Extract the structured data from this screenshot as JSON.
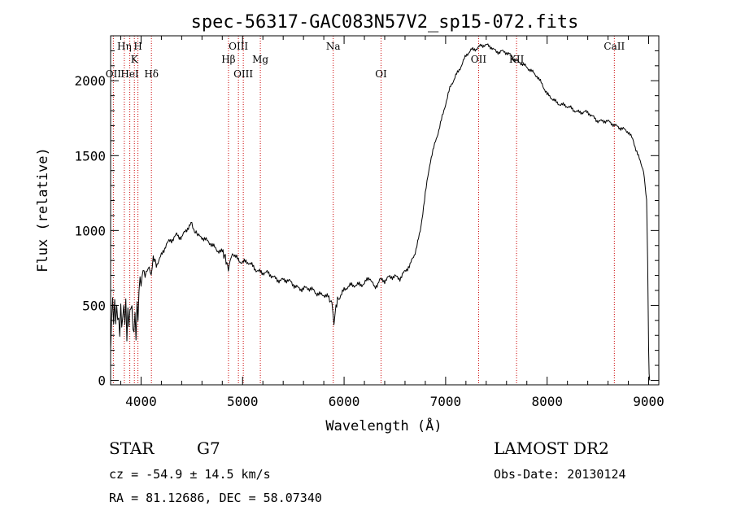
{
  "chart_data": {
    "type": "line",
    "title": "spec-56317-GAC083N57V2_sp15-072.fits",
    "xlabel": "Wavelength (Å)",
    "ylabel": "Flux (relative)",
    "xlim": [
      3700,
      9100
    ],
    "ylim": [
      -30,
      2300
    ],
    "xticks": [
      4000,
      5000,
      6000,
      7000,
      8000,
      9000
    ],
    "yticks": [
      0,
      500,
      1000,
      1500,
      2000
    ],
    "grid": false,
    "line_color": "#000000",
    "marker_color": "#cc0000",
    "series": [
      {
        "x": [
          3700,
          3710,
          3720,
          3730,
          3740,
          3750,
          3760,
          3770,
          3780,
          3790,
          3800,
          3810,
          3820,
          3830,
          3840,
          3850,
          3860,
          3870,
          3880,
          3890,
          3900,
          3910,
          3920,
          3930,
          3940,
          3950,
          3960,
          3970,
          3980,
          3990,
          4000,
          4020,
          4040,
          4060,
          4080,
          4100,
          4120,
          4150,
          4200,
          4250,
          4300,
          4350,
          4400,
          4450,
          4500,
          4520,
          4550,
          4600,
          4650,
          4700,
          4750,
          4800,
          4830,
          4860,
          4880,
          4900,
          4950,
          5000,
          5050,
          5100,
          5150,
          5200,
          5300,
          5400,
          5500,
          5600,
          5700,
          5800,
          5850,
          5880,
          5900,
          5920,
          5950,
          6000,
          6050,
          6100,
          6150,
          6200,
          6250,
          6300,
          6350,
          6400,
          6450,
          6500,
          6550,
          6600,
          6650,
          6700,
          6750,
          6800,
          6850,
          6900,
          6950,
          7000,
          7050,
          7100,
          7150,
          7200,
          7250,
          7300,
          7350,
          7400,
          7450,
          7500,
          7550,
          7600,
          7650,
          7700,
          7750,
          7800,
          7850,
          7900,
          7950,
          8000,
          8100,
          8200,
          8300,
          8400,
          8500,
          8600,
          8700,
          8800,
          8850,
          8900,
          8950,
          8980,
          8990,
          9000,
          9005,
          9010
        ],
        "y": [
          200,
          450,
          550,
          400,
          500,
          350,
          450,
          380,
          420,
          300,
          550,
          350,
          450,
          480,
          400,
          550,
          300,
          500,
          350,
          450,
          420,
          480,
          300,
          350,
          450,
          300,
          520,
          400,
          600,
          700,
          650,
          750,
          680,
          720,
          760,
          700,
          820,
          780,
          840,
          900,
          930,
          980,
          960,
          1000,
          1040,
          1000,
          980,
          960,
          920,
          900,
          880,
          860,
          820,
          740,
          830,
          850,
          820,
          790,
          780,
          760,
          740,
          720,
          690,
          670,
          640,
          610,
          600,
          570,
          540,
          520,
          380,
          500,
          560,
          600,
          620,
          640,
          650,
          640,
          680,
          620,
          680,
          660,
          680,
          700,
          690,
          720,
          760,
          860,
          1000,
          1240,
          1460,
          1600,
          1720,
          1840,
          1960,
          2040,
          2100,
          2160,
          2200,
          2220,
          2240,
          2230,
          2220,
          2200,
          2200,
          2180,
          2160,
          2140,
          2120,
          2080,
          2060,
          2040,
          1980,
          1900,
          1860,
          1820,
          1800,
          1780,
          1740,
          1720,
          1700,
          1650,
          1600,
          1500,
          1400,
          1200,
          800,
          200,
          50,
          0
        ]
      }
    ],
    "line_markers": [
      {
        "label": "OII",
        "x": 3727,
        "row": 3
      },
      {
        "label": "Hη",
        "x": 3835,
        "row": 1
      },
      {
        "label": "HeI",
        "x": 3889,
        "row": 3
      },
      {
        "label": "K",
        "x": 3934,
        "row": 2
      },
      {
        "label": "H",
        "x": 3969,
        "row": 1
      },
      {
        "label": "Hδ",
        "x": 4102,
        "row": 3
      },
      {
        "label": "Hβ",
        "x": 4861,
        "row": 2
      },
      {
        "label": "OIII",
        "x": 4959,
        "row": 1
      },
      {
        "label": "OIII",
        "x": 5007,
        "row": 3
      },
      {
        "label": "Mg",
        "x": 5175,
        "row": 2
      },
      {
        "label": "Na",
        "x": 5893,
        "row": 1
      },
      {
        "label": "OI",
        "x": 6364,
        "row": 3
      },
      {
        "label": "OII",
        "x": 7325,
        "row": 2
      },
      {
        "label": "KII",
        "x": 7699,
        "row": 2
      },
      {
        "label": "CaII",
        "x": 8662,
        "row": 1
      }
    ]
  },
  "info": {
    "object_type": "STAR",
    "subclass": "G7",
    "redshift": "cz = -54.9 ± 14.5 km/s",
    "coords": "RA =  81.12686, DEC =  58.07340",
    "survey": "LAMOST DR2",
    "obs_date": "Obs-Date: 20130124"
  }
}
